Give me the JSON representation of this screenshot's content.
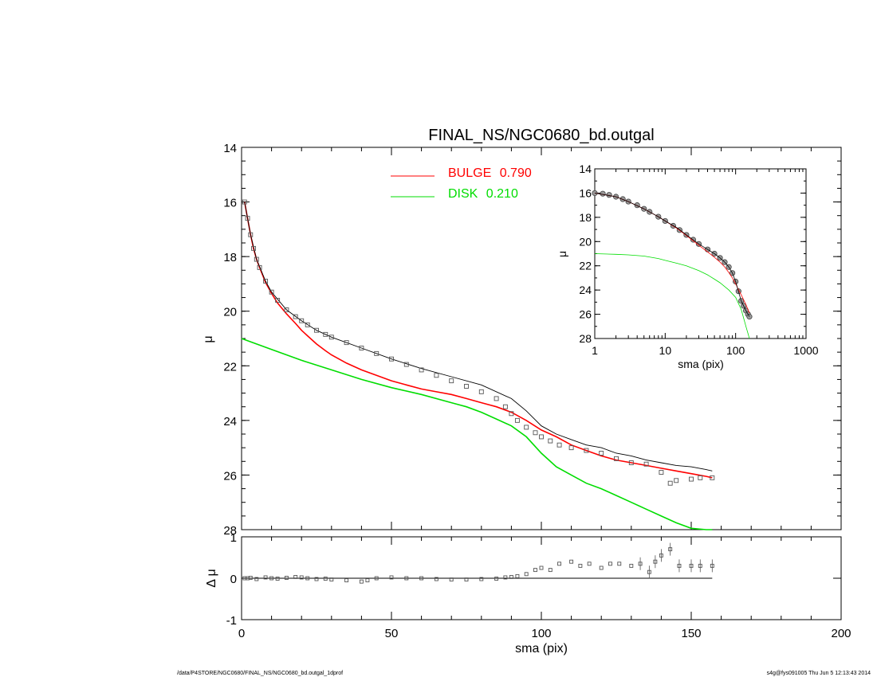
{
  "title": "FINAL_NS/NGC0680_bd.outgal",
  "colors": {
    "data": "#000000",
    "total_model": "#000000",
    "bulge": "#ff0000",
    "disk": "#00dd00",
    "markers": "#555555"
  },
  "legend": [
    {
      "name": "BULGE",
      "value": "0.790",
      "color": "#ff0000"
    },
    {
      "name": "DISK",
      "value": "0.210",
      "color": "#00dd00"
    }
  ],
  "footer": {
    "path": "/data/P4STORE/NGC0680/FINAL_NS/NGC0680_bd.outgal_1dprof",
    "host_time": "s4g@fys091005  Thu Jun  5 12:13:43 2014"
  },
  "chart_data": [
    {
      "id": "main",
      "type": "scatter",
      "title": "FINAL_NS/NGC0680_bd.outgal",
      "xlabel": "sma (pix)",
      "ylabel": "μ",
      "xlim": [
        0,
        200
      ],
      "ylim": [
        28,
        14
      ],
      "y_inverted": true,
      "xticks": [
        "0",
        "50",
        "100",
        "150",
        "200"
      ],
      "yticks": [
        "14",
        "16",
        "18",
        "20",
        "22",
        "24",
        "26",
        "28"
      ],
      "series": [
        {
          "style": "points",
          "x": [
            1,
            2,
            3,
            4,
            5,
            6,
            8,
            10,
            12,
            15,
            18,
            20,
            22,
            25,
            28,
            30,
            35,
            40,
            45,
            50,
            55,
            60,
            65,
            70,
            75,
            80,
            85,
            88,
            90,
            92,
            95,
            98,
            100,
            103,
            106,
            110,
            115,
            120,
            125,
            130,
            135,
            140,
            143,
            145,
            150,
            153,
            157
          ],
          "y": [
            16.0,
            16.6,
            17.2,
            17.7,
            18.1,
            18.4,
            18.9,
            19.3,
            19.6,
            19.95,
            20.2,
            20.35,
            20.5,
            20.7,
            20.85,
            20.95,
            21.15,
            21.35,
            21.55,
            21.75,
            21.95,
            22.15,
            22.35,
            22.55,
            22.75,
            22.95,
            23.2,
            23.5,
            23.75,
            24.0,
            24.25,
            24.45,
            24.6,
            24.75,
            24.9,
            25.0,
            25.1,
            25.2,
            25.4,
            25.55,
            25.6,
            25.9,
            26.3,
            26.2,
            26.15,
            26.1,
            26.1
          ]
        },
        {
          "name": "BULGE",
          "style": "line",
          "x": [
            1,
            2,
            3,
            4,
            5,
            6,
            8,
            10,
            12,
            15,
            18,
            20,
            22,
            25,
            28,
            30,
            35,
            40,
            45,
            50,
            55,
            60,
            65,
            70,
            75,
            80,
            85,
            90,
            95,
            100,
            105,
            110,
            115,
            120,
            125,
            130,
            135,
            140,
            145,
            150,
            155,
            157
          ],
          "y": [
            16.0,
            16.6,
            17.2,
            17.7,
            18.1,
            18.4,
            18.95,
            19.35,
            19.7,
            20.1,
            20.45,
            20.7,
            20.9,
            21.2,
            21.45,
            21.6,
            21.9,
            22.15,
            22.35,
            22.55,
            22.7,
            22.85,
            22.95,
            23.05,
            23.2,
            23.35,
            23.5,
            23.7,
            24.0,
            24.35,
            24.6,
            24.9,
            25.1,
            25.3,
            25.45,
            25.55,
            25.65,
            25.75,
            25.85,
            25.95,
            26.05,
            26.1
          ]
        },
        {
          "name": "DISK",
          "style": "line",
          "x": [
            0,
            10,
            20,
            30,
            40,
            50,
            60,
            70,
            75,
            80,
            85,
            90,
            95,
            100,
            105,
            110,
            115,
            120,
            125,
            130,
            135,
            140,
            145,
            150,
            155,
            157
          ],
          "y": [
            21.0,
            21.4,
            21.8,
            22.15,
            22.5,
            22.8,
            23.05,
            23.35,
            23.5,
            23.7,
            23.95,
            24.2,
            24.6,
            25.2,
            25.7,
            26.0,
            26.3,
            26.5,
            26.75,
            27.0,
            27.25,
            27.5,
            27.75,
            27.95,
            28.0,
            28.05
          ]
        },
        {
          "name": "total",
          "style": "line",
          "x": [
            1,
            2,
            3,
            5,
            8,
            10,
            15,
            20,
            25,
            30,
            40,
            50,
            60,
            70,
            80,
            90,
            95,
            100,
            105,
            110,
            115,
            120,
            125,
            130,
            135,
            140,
            145,
            150,
            155,
            157
          ],
          "y": [
            16.0,
            16.6,
            17.2,
            18.1,
            18.9,
            19.3,
            19.95,
            20.35,
            20.7,
            20.95,
            21.35,
            21.75,
            22.1,
            22.4,
            22.7,
            23.2,
            23.65,
            24.2,
            24.5,
            24.7,
            24.9,
            25.0,
            25.2,
            25.3,
            25.45,
            25.55,
            25.65,
            25.7,
            25.8,
            25.85
          ]
        }
      ]
    },
    {
      "id": "residual",
      "type": "scatter",
      "xlabel": "sma (pix)",
      "ylabel": "Δ μ",
      "xlim": [
        0,
        200
      ],
      "ylim": [
        -1,
        1
      ],
      "xticks": [
        "0",
        "50",
        "100",
        "150",
        "200"
      ],
      "yticks": [
        "-1",
        "0",
        "1"
      ],
      "x": [
        1,
        2,
        3,
        5,
        8,
        10,
        12,
        15,
        18,
        20,
        22,
        25,
        28,
        30,
        35,
        40,
        42,
        45,
        50,
        55,
        60,
        65,
        70,
        75,
        80,
        85,
        88,
        90,
        92,
        95,
        98,
        100,
        103,
        106,
        110,
        113,
        116,
        120,
        123,
        126,
        130,
        133,
        136,
        138,
        140,
        143,
        146,
        150,
        153,
        157
      ],
      "y": [
        0.0,
        0.0,
        0.01,
        -0.02,
        0.02,
        0.0,
        -0.01,
        0.01,
        0.03,
        0.02,
        0.0,
        -0.02,
        -0.01,
        -0.03,
        -0.05,
        -0.08,
        -0.05,
        0.0,
        0.02,
        0.0,
        0.0,
        -0.02,
        -0.03,
        -0.03,
        -0.02,
        -0.01,
        0.02,
        0.03,
        0.05,
        0.1,
        0.2,
        0.25,
        0.2,
        0.35,
        0.4,
        0.3,
        0.35,
        0.25,
        0.35,
        0.35,
        0.3,
        0.35,
        0.15,
        0.4,
        0.55,
        0.7,
        0.3,
        0.3,
        0.3,
        0.3
      ]
    },
    {
      "id": "inset",
      "type": "scatter",
      "xlabel": "sma (pix)",
      "ylabel": "μ",
      "x_scale": "log",
      "xlim": [
        1,
        1000
      ],
      "ylim": [
        28,
        14
      ],
      "xticks": [
        "1",
        "10",
        "100",
        "1000"
      ],
      "yticks": [
        "14",
        "16",
        "18",
        "20",
        "22",
        "24",
        "26",
        "28"
      ],
      "series": [
        {
          "style": "points",
          "x": [
            1,
            1.3,
            1.6,
            2,
            2.5,
            3,
            4,
            5,
            6,
            8,
            10,
            13,
            16,
            20,
            25,
            30,
            40,
            50,
            60,
            70,
            80,
            90,
            100,
            110,
            120,
            130,
            140,
            150,
            157
          ],
          "y": [
            16.0,
            16.05,
            16.15,
            16.3,
            16.5,
            16.7,
            17.0,
            17.3,
            17.55,
            17.95,
            18.3,
            18.7,
            19.05,
            19.45,
            19.85,
            20.2,
            20.65,
            21.0,
            21.35,
            21.7,
            22.1,
            22.6,
            23.3,
            24.1,
            24.9,
            25.3,
            25.7,
            26.0,
            26.2
          ]
        },
        {
          "name": "BULGE",
          "style": "line",
          "x": [
            1,
            2,
            3,
            5,
            8,
            10,
            15,
            20,
            30,
            40,
            50,
            60,
            70,
            80,
            90,
            100,
            120,
            140,
            157
          ],
          "y": [
            16.0,
            16.3,
            16.7,
            17.3,
            17.95,
            18.3,
            18.95,
            19.5,
            20.3,
            20.85,
            21.3,
            21.7,
            22.1,
            22.55,
            23.0,
            23.5,
            24.4,
            25.2,
            25.9
          ]
        },
        {
          "name": "DISK",
          "style": "line",
          "x": [
            1,
            2,
            3,
            5,
            8,
            10,
            15,
            20,
            30,
            40,
            50,
            60,
            80,
            100,
            120,
            140,
            157
          ],
          "y": [
            21.0,
            21.05,
            21.1,
            21.2,
            21.4,
            21.55,
            21.8,
            22.0,
            22.4,
            22.75,
            23.1,
            23.4,
            24.0,
            24.6,
            25.6,
            27.0,
            28.0
          ]
        },
        {
          "name": "total",
          "style": "line",
          "x": [
            1,
            2,
            3,
            5,
            8,
            10,
            15,
            20,
            30,
            40,
            50,
            60,
            70,
            80,
            90,
            100,
            120,
            140,
            157
          ],
          "y": [
            16.0,
            16.3,
            16.7,
            17.3,
            17.95,
            18.3,
            18.9,
            19.45,
            20.2,
            20.65,
            21.0,
            21.35,
            21.7,
            22.1,
            22.6,
            23.3,
            24.9,
            25.7,
            26.2
          ]
        }
      ]
    }
  ]
}
